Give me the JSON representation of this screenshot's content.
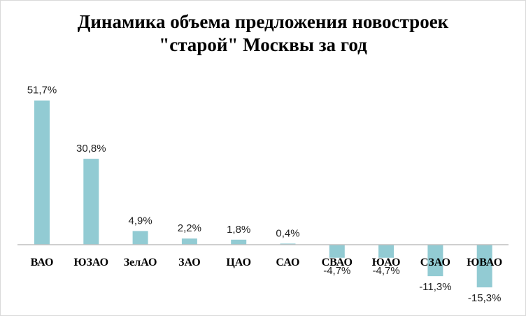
{
  "chart_data": {
    "type": "bar",
    "title_lines": [
      "Динамика объема предложения новостроек",
      "\"старой\" Москвы за год"
    ],
    "categories": [
      "ВАО",
      "ЮЗАО",
      "ЗелАО",
      "ЗАО",
      "ЦАО",
      "САО",
      "СВАО",
      "ЮАО",
      "СЗАО",
      "ЮВАО"
    ],
    "values": [
      51.7,
      30.8,
      4.9,
      2.2,
      1.8,
      0.4,
      -4.7,
      -4.7,
      -11.3,
      -15.3
    ],
    "data_labels": [
      "51,7%",
      "30,8%",
      "4,9%",
      "2,2%",
      "1,8%",
      "0,4%",
      "-4,7%",
      "-4,7%",
      "-11,3%",
      "-15,3%"
    ],
    "xlabel": "",
    "ylabel": "",
    "grid": false,
    "legend": "none",
    "bar_color": "#92cbd3",
    "axis_color": "#bfbfbf"
  }
}
